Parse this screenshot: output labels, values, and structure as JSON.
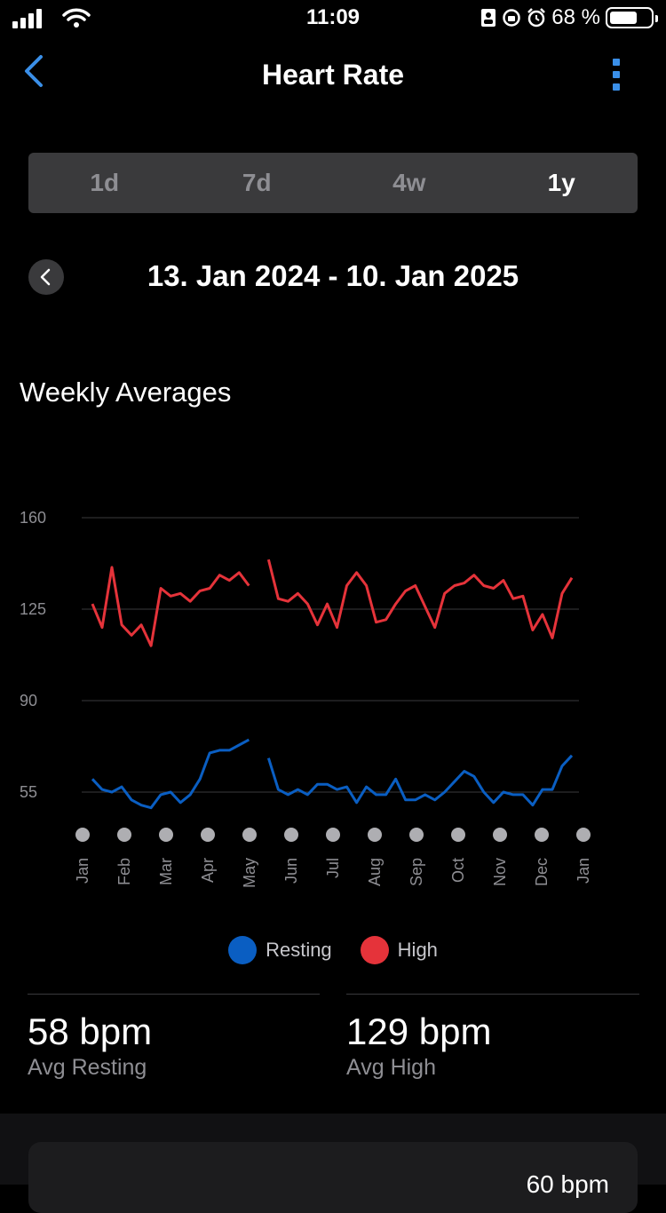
{
  "status_bar": {
    "time": "11:09",
    "battery": "68 %",
    "battery_level": 0.68
  },
  "header": {
    "title": "Heart Rate"
  },
  "range_tabs": [
    {
      "label": "1d",
      "active": false
    },
    {
      "label": "7d",
      "active": false
    },
    {
      "label": "4w",
      "active": false
    },
    {
      "label": "1y",
      "active": true
    }
  ],
  "date_range": "13. Jan 2024 - 10. Jan 2025",
  "chart_title": "Weekly Averages",
  "chart_data": {
    "type": "line",
    "title": "Weekly Averages",
    "y_ticks": [
      160,
      125,
      90,
      55
    ],
    "ylim": [
      40,
      160
    ],
    "x_labels": [
      "Jan",
      "Feb",
      "Mar",
      "Apr",
      "May",
      "Jun",
      "Jul",
      "Aug",
      "Sep",
      "Oct",
      "Nov",
      "Dec",
      "Jan"
    ],
    "grid": true,
    "legend_position": "bottom",
    "series": [
      {
        "name": "High",
        "color": "#e5333a",
        "values": [
          127,
          118,
          141,
          119,
          115,
          119,
          111,
          133,
          130,
          131,
          128,
          132,
          133,
          138,
          136,
          139,
          134,
          null,
          144,
          129,
          128,
          131,
          127,
          119,
          127,
          118,
          134,
          139,
          134,
          120,
          121,
          127,
          132,
          134,
          126,
          118,
          131,
          134,
          135,
          138,
          134,
          133,
          136,
          129,
          130,
          117,
          123,
          114,
          131,
          137
        ]
      },
      {
        "name": "Resting",
        "color": "#0a5ec2",
        "values": [
          60,
          56,
          55,
          57,
          52,
          50,
          49,
          54,
          55,
          51,
          54,
          60,
          70,
          71,
          71,
          73,
          75,
          null,
          68,
          56,
          54,
          56,
          54,
          58,
          58,
          56,
          57,
          51,
          57,
          54,
          54,
          60,
          52,
          52,
          54,
          52,
          55,
          59,
          63,
          61,
          55,
          51,
          55,
          54,
          54,
          50,
          56,
          56,
          65,
          69
        ]
      }
    ]
  },
  "legend": {
    "resting": "Resting",
    "high": "High"
  },
  "stats": {
    "resting_value": "58 bpm",
    "resting_label": "Avg Resting",
    "high_value": "129 bpm",
    "high_label": "Avg High"
  },
  "bottom_card_value": "60 bpm",
  "colors": {
    "resting": "#0a5ec2",
    "high": "#e5333a",
    "accent": "#3a8fe8"
  }
}
